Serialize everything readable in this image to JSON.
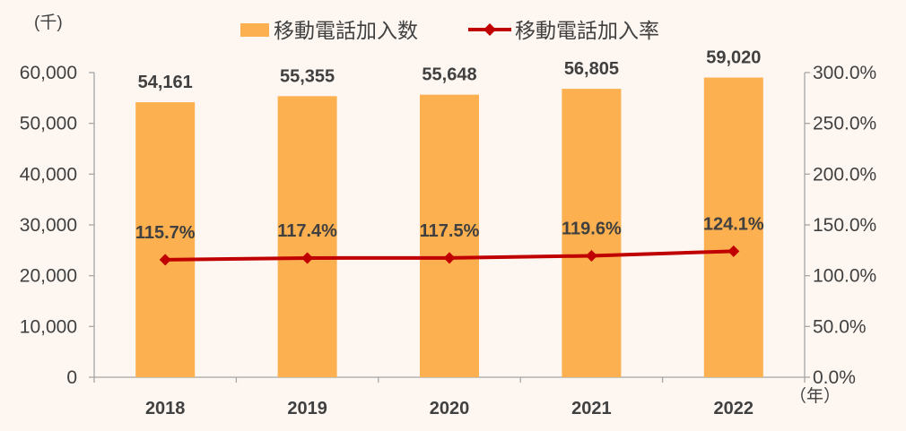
{
  "chart_data": {
    "type": "bar",
    "categories": [
      "2018",
      "2019",
      "2020",
      "2021",
      "2022"
    ],
    "series": [
      {
        "name": "移動電話加入数",
        "kind": "bar",
        "axis": "left",
        "values": [
          54161,
          55355,
          55648,
          56805,
          59020
        ],
        "labels": [
          "54,161",
          "55,355",
          "55,648",
          "56,805",
          "59,020"
        ],
        "color": "#fdb04f"
      },
      {
        "name": "移動電話加入率",
        "kind": "line",
        "axis": "right",
        "values": [
          115.7,
          117.4,
          117.5,
          119.6,
          124.1
        ],
        "labels": [
          "115.7%",
          "117.4%",
          "117.5%",
          "119.6%",
          "124.1%"
        ],
        "color": "#c00000"
      }
    ],
    "y_left": {
      "unit": "(千)",
      "range": [
        0,
        60000
      ],
      "tick_labels": [
        "0",
        "10,000",
        "20,000",
        "30,000",
        "40,000",
        "50,000",
        "60,000"
      ]
    },
    "y_right": {
      "range": [
        0,
        300
      ],
      "tick_labels": [
        "0.0%",
        "50.0%",
        "100.0%",
        "150.0%",
        "200.0%",
        "250.0%",
        "300.0%"
      ]
    },
    "x_unit": "（年）",
    "legend": "top",
    "grid": false
  }
}
